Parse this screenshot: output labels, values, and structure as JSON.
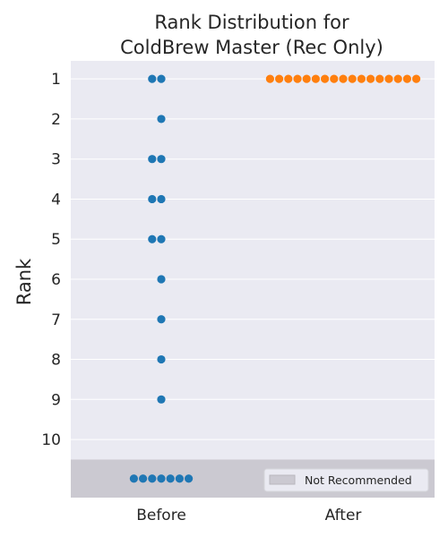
{
  "chart_data": {
    "type": "scatter",
    "subtype": "swarm",
    "title": [
      "Rank Distribution for",
      "ColdBrew Master (Rec Only)"
    ],
    "ylabel": "Rank",
    "xlabel": "",
    "categories": [
      "Before",
      "After"
    ],
    "y_ticks": [
      "1",
      "2",
      "3",
      "4",
      "5",
      "6",
      "7",
      "8",
      "9",
      "10"
    ],
    "ylim": [
      0.55,
      11.45
    ],
    "y_inverted": true,
    "grid": true,
    "background": "#eaeaf2",
    "not_recommended_band": {
      "label": "Not Recommended",
      "from": 10.5,
      "to": 11.45,
      "color": "#cbc9d1"
    },
    "legend": {
      "position": "bottom-right",
      "entries": [
        "Not Recommended"
      ]
    },
    "series": [
      {
        "category": "Before",
        "color": "#1f77b4",
        "ranks": [
          1,
          1,
          2,
          3,
          3,
          4,
          4,
          5,
          5,
          6,
          7,
          8,
          9
        ],
        "not_recommended_count": 7
      },
      {
        "category": "After",
        "color": "#ff7f0e",
        "ranks": [
          1,
          1,
          1,
          1,
          1,
          1,
          1,
          1,
          1,
          1,
          1,
          1,
          1,
          1,
          1,
          1,
          1
        ],
        "not_recommended_count": 0
      }
    ]
  }
}
